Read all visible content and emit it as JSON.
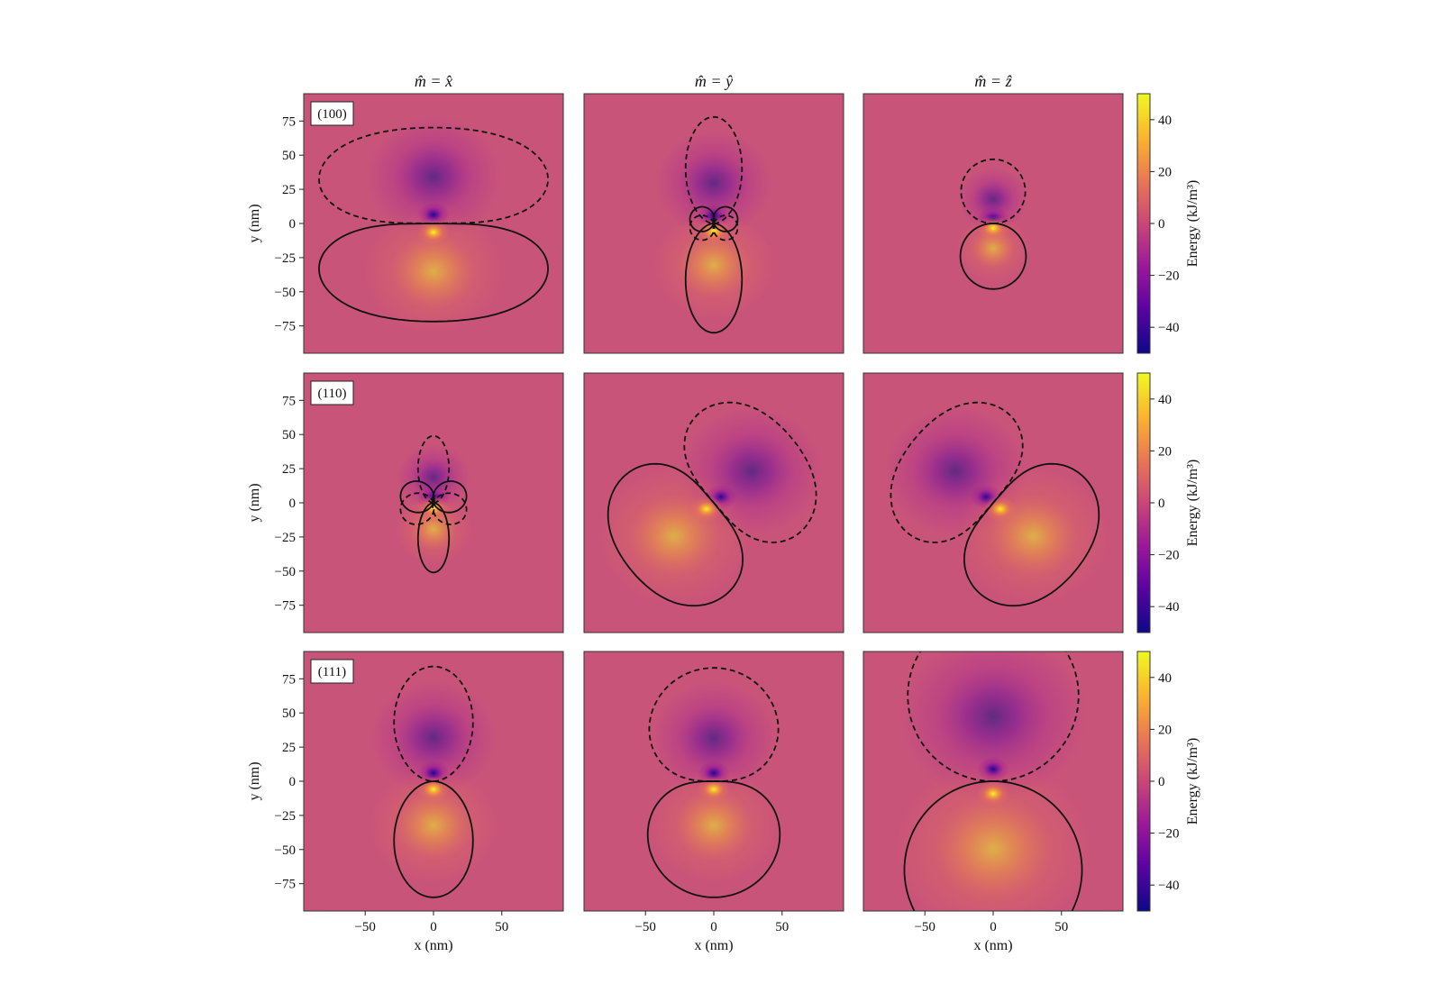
{
  "chart_data": {
    "type": "heatmap",
    "layout": "3x3 grid",
    "column_titles": [
      "m̂ = x̂",
      "m̂ = ŷ",
      "m̂ = ẑ"
    ],
    "row_labels": [
      "(100)",
      "(110)",
      "(111)"
    ],
    "xlabel": "x (nm)",
    "ylabel": "y (nm)",
    "xlim": [
      -95,
      95
    ],
    "ylim": [
      -95,
      95
    ],
    "xticks": [
      -50,
      0,
      50
    ],
    "yticks": [
      75,
      50,
      25,
      0,
      -25,
      -50,
      -75
    ],
    "colorbar": {
      "label": "Energy (kJ/m³)",
      "range": [
        -50,
        50
      ],
      "ticks": [
        40,
        20,
        0,
        -20,
        -40
      ],
      "colormap": "plasma",
      "colors": [
        "#0d0887",
        "#5b02a3",
        "#9a179b",
        "#cb4678",
        "#eb7852",
        "#fbb32f",
        "#f0f921"
      ]
    },
    "background_color": "#c9547a",
    "contour_styles": {
      "positive": "solid",
      "negative": "dashed"
    },
    "panels": [
      {
        "row": "(100)",
        "column": "m̂ = x̂",
        "positive_lobe": {
          "axis_deg": -90,
          "length": 92,
          "width": 88,
          "shape": "kidney"
        },
        "negative_lobe": {
          "axis_deg": 90,
          "length": 90,
          "width": 88,
          "shape": "kidney"
        }
      },
      {
        "row": "(100)",
        "column": "m̂ = ŷ",
        "positive_lobe": {
          "axis_deg": -90,
          "length": 80,
          "width": 20,
          "shape": "teardrop"
        },
        "negative_lobe": {
          "axis_deg": 90,
          "length": 78,
          "width": 20,
          "shape": "teardrop"
        },
        "minor_lobes": [
          {
            "sign": "positive",
            "axis_deg": 160,
            "length": 18,
            "width": 4
          },
          {
            "sign": "positive",
            "axis_deg": 20,
            "length": 18,
            "width": 4
          },
          {
            "sign": "negative",
            "axis_deg": -160,
            "length": 18,
            "width": 4
          },
          {
            "sign": "negative",
            "axis_deg": -20,
            "length": 18,
            "width": 4
          }
        ]
      },
      {
        "row": "(100)",
        "column": "m̂ = ẑ",
        "positive_lobe": {
          "axis_deg": -90,
          "length": 48,
          "width": 24,
          "shape": "circle"
        },
        "negative_lobe": {
          "axis_deg": 90,
          "length": 47,
          "width": 24,
          "shape": "circle"
        }
      },
      {
        "row": "(110)",
        "column": "m̂ = x̂",
        "positive_lobe": {
          "axis_deg": -90,
          "length": 51,
          "width": 11,
          "shape": "teardrop"
        },
        "negative_lobe": {
          "axis_deg": 90,
          "length": 49,
          "width": 11,
          "shape": "teardrop"
        },
        "minor_lobes": [
          {
            "sign": "positive",
            "axis_deg": 160,
            "length": 25,
            "width": 5
          },
          {
            "sign": "positive",
            "axis_deg": 20,
            "length": 25,
            "width": 5
          },
          {
            "sign": "negative",
            "axis_deg": -160,
            "length": 25,
            "width": 5
          },
          {
            "sign": "negative",
            "axis_deg": -20,
            "length": 25,
            "width": 5
          }
        ]
      },
      {
        "row": "(110)",
        "column": "m̂ = ŷ",
        "positive_lobe": {
          "axis_deg": -140,
          "length": 100,
          "width": 60,
          "shape": "kidney"
        },
        "negative_lobe": {
          "axis_deg": 40,
          "length": 95,
          "width": 60,
          "shape": "kidney"
        }
      },
      {
        "row": "(110)",
        "column": "m̂ = ẑ",
        "positive_lobe": {
          "axis_deg": -40,
          "length": 100,
          "width": 60,
          "shape": "kidney"
        },
        "negative_lobe": {
          "axis_deg": 140,
          "length": 95,
          "width": 60,
          "shape": "kidney"
        }
      },
      {
        "row": "(111)",
        "column": "m̂ = x̂",
        "positive_lobe": {
          "axis_deg": -90,
          "length": 85,
          "width": 28,
          "shape": "teardrop"
        },
        "negative_lobe": {
          "axis_deg": 90,
          "length": 84,
          "width": 28,
          "shape": "teardrop"
        }
      },
      {
        "row": "(111)",
        "column": "m̂ = ŷ",
        "positive_lobe": {
          "axis_deg": -90,
          "length": 85,
          "width": 63,
          "shape": "ellipse"
        },
        "negative_lobe": {
          "axis_deg": 90,
          "length": 83,
          "width": 63,
          "shape": "ellipse"
        }
      },
      {
        "row": "(111)",
        "column": "m̂ = ẑ",
        "positive_lobe": {
          "axis_deg": -90,
          "length": 130,
          "width": 65,
          "shape": "circle"
        },
        "negative_lobe": {
          "axis_deg": 90,
          "length": 125,
          "width": 65,
          "shape": "circle"
        }
      }
    ]
  }
}
